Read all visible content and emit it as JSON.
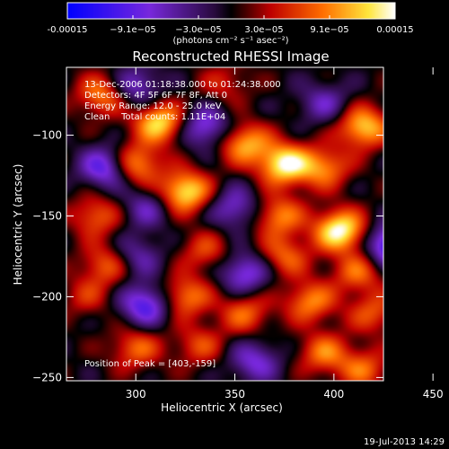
{
  "chart_data": {
    "type": "heatmap",
    "title": "Reconstructed RHESSI Image",
    "xlabel": "Heliocentric X (arcsec)",
    "ylabel": "Heliocentric Y (arcsec)",
    "xlim": [
      265,
      425
    ],
    "ylim": [
      -252,
      -58
    ],
    "xticks": [
      300,
      350,
      400,
      450
    ],
    "yticks": [
      -100,
      -150,
      -200,
      -250
    ],
    "colorbar": {
      "ticks": [
        "-0.00015",
        "−9.1e−05",
        "−3.0e−05",
        "3.0e−05",
        "9.1e−05",
        "0.00015"
      ],
      "label": "(photons cm⁻² s⁻¹ asec⁻²)",
      "range": [
        -0.00015,
        0.00015
      ]
    },
    "annotations": {
      "time": "13-Dec-2006 01:18:38.000 to 01:24:38.000",
      "detectors": "Detectors: 4F 5F 6F 7F 8F, Att 0",
      "energy": "Energy Range: 12.0 - 25.0 keV",
      "clean": "Clean    Total counts: 1.11E+04",
      "peak": "Position of Peak = [403,-159]"
    },
    "peak": [
      403,
      -159
    ],
    "blobs": [
      {
        "x": 283,
        "y": -75,
        "v": 0.6
      },
      {
        "x": 300,
        "y": -70,
        "v": -0.5
      },
      {
        "x": 345,
        "y": -68,
        "v": 0.3
      },
      {
        "x": 312,
        "y": -92,
        "v": 0.85
      },
      {
        "x": 335,
        "y": -95,
        "v": -0.6
      },
      {
        "x": 355,
        "y": -105,
        "v": 0.7
      },
      {
        "x": 395,
        "y": -80,
        "v": -0.4
      },
      {
        "x": 415,
        "y": -95,
        "v": 0.8
      },
      {
        "x": 285,
        "y": -120,
        "v": -0.7
      },
      {
        "x": 300,
        "y": -118,
        "v": 0.7
      },
      {
        "x": 375,
        "y": -118,
        "v": 0.95
      },
      {
        "x": 395,
        "y": -120,
        "v": 0.6
      },
      {
        "x": 280,
        "y": -150,
        "v": 0.5
      },
      {
        "x": 305,
        "y": -145,
        "v": -0.4
      },
      {
        "x": 325,
        "y": -135,
        "v": 0.9
      },
      {
        "x": 350,
        "y": -145,
        "v": -0.5
      },
      {
        "x": 372,
        "y": -150,
        "v": 0.6
      },
      {
        "x": 403,
        "y": -159,
        "v": 1.0
      },
      {
        "x": 430,
        "y": -168,
        "v": -0.95
      },
      {
        "x": 285,
        "y": -180,
        "v": 0.5
      },
      {
        "x": 300,
        "y": -175,
        "v": -0.4
      },
      {
        "x": 335,
        "y": -172,
        "v": 0.4
      },
      {
        "x": 355,
        "y": -185,
        "v": -0.6
      },
      {
        "x": 375,
        "y": -175,
        "v": 0.5
      },
      {
        "x": 412,
        "y": -185,
        "v": 0.5
      },
      {
        "x": 275,
        "y": -200,
        "v": 0.3
      },
      {
        "x": 305,
        "y": -205,
        "v": -0.7
      },
      {
        "x": 325,
        "y": -200,
        "v": 0.6
      },
      {
        "x": 355,
        "y": -210,
        "v": 0.5
      },
      {
        "x": 388,
        "y": -203,
        "v": 0.6
      },
      {
        "x": 420,
        "y": -210,
        "v": 0.45
      },
      {
        "x": 300,
        "y": -232,
        "v": 0.5
      },
      {
        "x": 332,
        "y": -230,
        "v": 0.4
      },
      {
        "x": 360,
        "y": -240,
        "v": -0.5
      },
      {
        "x": 395,
        "y": -235,
        "v": 0.55
      },
      {
        "x": 415,
        "y": -245,
        "v": 0.5
      }
    ]
  },
  "footer": {
    "timestamp": "19-Jul-2013 14:29"
  }
}
